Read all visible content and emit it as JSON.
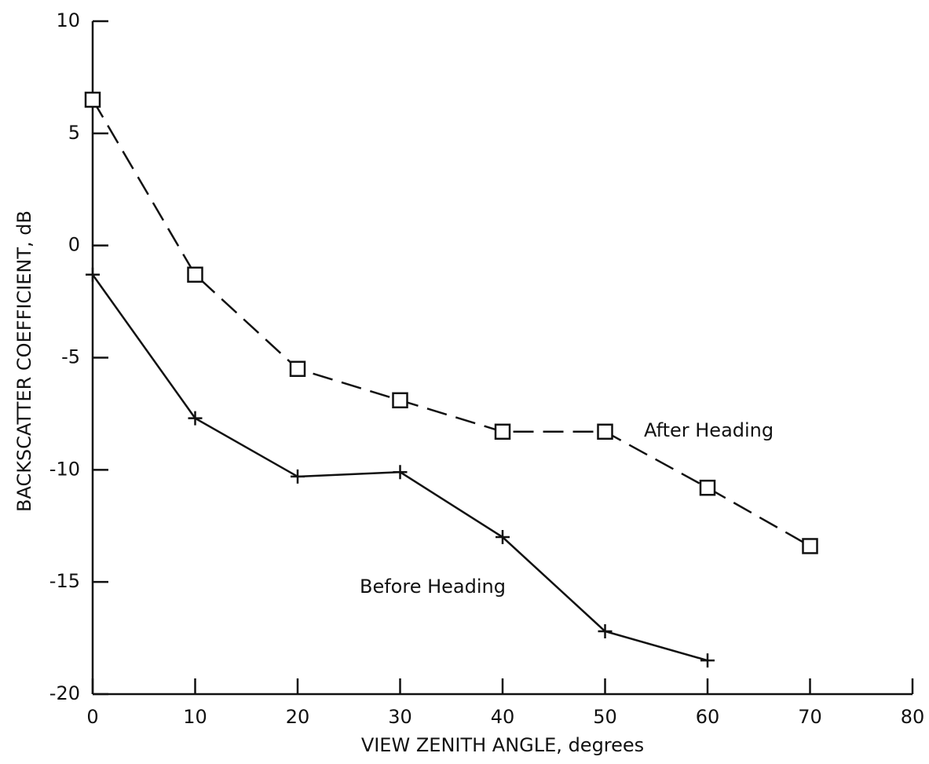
{
  "chart_data": {
    "type": "line",
    "x_label": "VIEW ZENITH ANGLE, degrees",
    "y_label": "BACKSCATTER COEFFICIENT, dB",
    "x": [
      0,
      10,
      20,
      30,
      40,
      50,
      60,
      70
    ],
    "series": [
      {
        "name": "After Heading",
        "color": "#111111",
        "marker": "square",
        "dash": true,
        "values": [
          6.5,
          -1.3,
          -5.5,
          -6.9,
          -8.3,
          -8.3,
          -10.8,
          -13.4
        ]
      },
      {
        "name": "Before Heading",
        "color": "#111111",
        "marker": "plus",
        "dash": false,
        "values": [
          -1.3,
          -7.7,
          -10.3,
          -10.1,
          -13.0,
          -17.2,
          -18.5,
          null
        ]
      }
    ],
    "xlim": [
      0,
      80
    ],
    "xticks": [
      0,
      10,
      20,
      30,
      40,
      50,
      60,
      70,
      80
    ],
    "ylim": [
      -20,
      10
    ],
    "yticks": [
      -20,
      -15,
      -10,
      -5,
      0,
      5,
      10
    ],
    "grid": false
  }
}
